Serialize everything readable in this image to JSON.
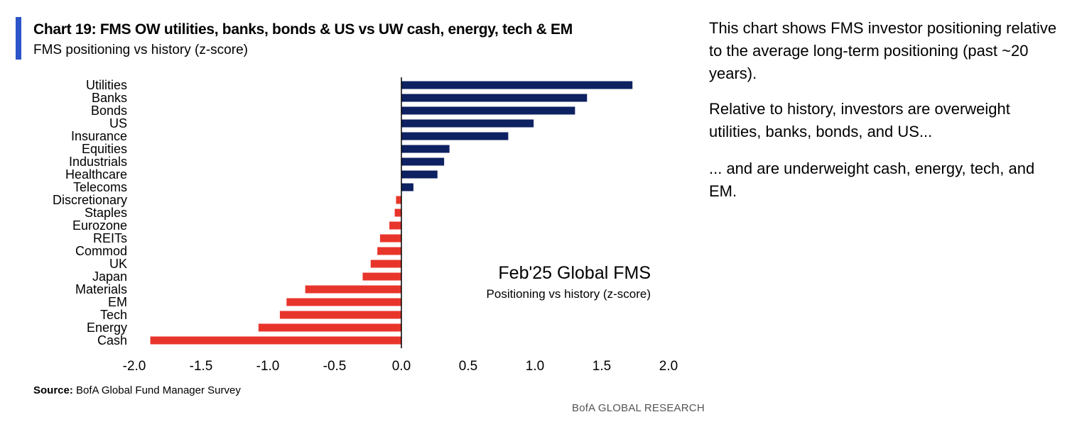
{
  "colors": {
    "accent": "#2B54C8",
    "positive": "#0E2161",
    "negative": "#E8352B",
    "axis": "#000000"
  },
  "header": {
    "title": "Chart 19: FMS OW utilities, banks, bonds & US vs UW cash, energy, tech & EM",
    "subtitle": "FMS positioning vs history (z-score)"
  },
  "chart_data": {
    "type": "bar",
    "orientation": "horizontal",
    "categories": [
      "Utilities",
      "Banks",
      "Bonds",
      "US",
      "Insurance",
      "Equities",
      "Industrials",
      "Healthcare",
      "Telecoms",
      "Discretionary",
      "Staples",
      "Eurozone",
      "REITs",
      "Commod",
      "UK",
      "Japan",
      "Materials",
      "EM",
      "Tech",
      "Energy",
      "Cash"
    ],
    "values": [
      1.73,
      1.39,
      1.3,
      0.99,
      0.8,
      0.36,
      0.32,
      0.27,
      0.09,
      -0.04,
      -0.05,
      -0.09,
      -0.16,
      -0.18,
      -0.23,
      -0.29,
      -0.72,
      -0.86,
      -0.91,
      -1.07,
      -1.88
    ],
    "xlim": [
      -2.0,
      2.0
    ],
    "xticks": [
      "-2.0",
      "-1.5",
      "-1.0",
      "-0.5",
      "0.0",
      "0.5",
      "1.0",
      "1.5",
      "2.0"
    ],
    "annotation": {
      "title": "Feb'25 Global FMS",
      "subtitle": "Positioning vs history (z-score)"
    }
  },
  "notes": [
    "This chart shows FMS investor positioning relative to the average long-term positioning (past ~20 years).",
    "Relative to history, investors are overweight utilities, banks, bonds, and US...",
    "... and are underweight cash, energy, tech, and EM."
  ],
  "source": {
    "label": "Source:",
    "text": " BofA Global Fund Manager Survey"
  },
  "brand": "BofA GLOBAL RESEARCH"
}
